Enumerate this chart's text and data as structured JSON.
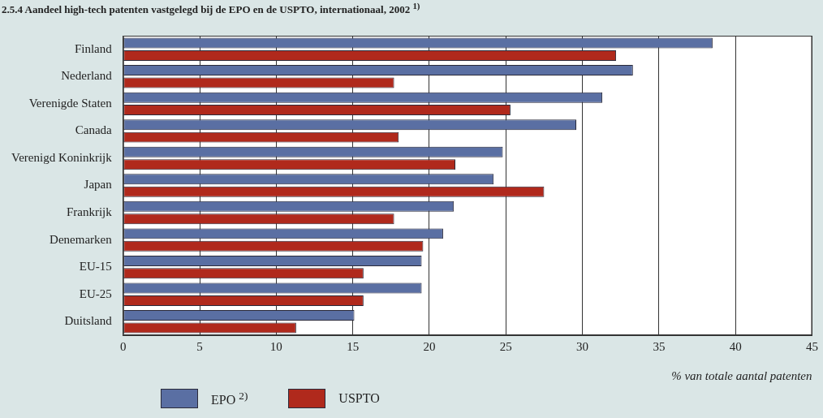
{
  "chart_data": {
    "type": "bar",
    "orientation": "horizontal",
    "title": "2.5.4 Aandeel high-tech patenten vastgelegd bij de EPO en de USPTO, internationaal, 2002 $^{1)}$",
    "xlabel": "% van totale aantal patenten",
    "categories": [
      "Finland",
      "Nederland",
      "Verenigde Staten",
      "Canada",
      "Verenigd Koninkrijk",
      "Japan",
      "Frankrijk",
      "Denemarken",
      "EU-15",
      "EU-25",
      "Duitsland"
    ],
    "series": [
      {
        "name": "EPO $^{2)}$",
        "color": "#5a6fa3",
        "values": [
          38.5,
          33.3,
          31.3,
          29.6,
          24.8,
          24.2,
          21.6,
          20.9,
          19.5,
          19.5,
          15.1
        ]
      },
      {
        "name": "USPTO",
        "color": "#b0291c",
        "values": [
          32.2,
          17.7,
          25.3,
          18.0,
          21.7,
          27.5,
          17.7,
          19.6,
          15.7,
          15.7,
          11.3
        ]
      }
    ],
    "xlim": [
      0,
      45
    ],
    "xticks": [
      0,
      5,
      10,
      15,
      20,
      25,
      30,
      35,
      40,
      45
    ],
    "grid": "x",
    "legend": "bottom"
  }
}
